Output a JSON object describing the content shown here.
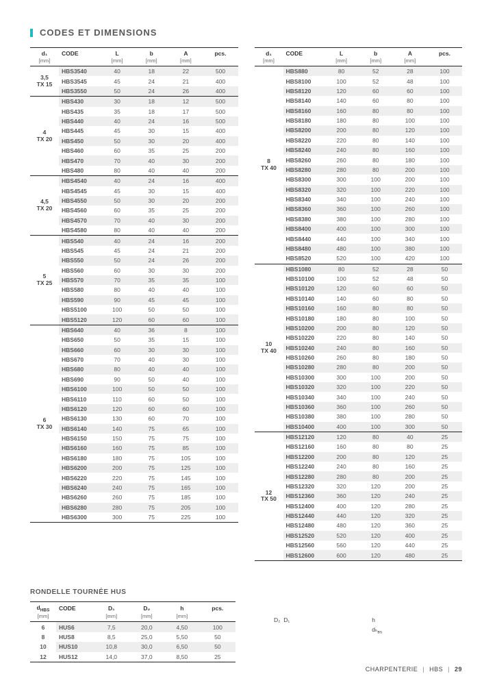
{
  "title": "CODES ET DIMENSIONS",
  "main_header": {
    "d": "d₁",
    "d_unit": "[mm]",
    "code": "CODE",
    "L": "L",
    "L_unit": "[mm]",
    "b": "b",
    "b_unit": "[mm]",
    "A": "A",
    "A_unit": "[mm]",
    "pcs": "pcs."
  },
  "groups_left": [
    {
      "d": "3,5\nTX 15",
      "rows": [
        [
          "HBS3540",
          "40",
          "18",
          "22",
          "500"
        ],
        [
          "HBS3545",
          "45",
          "24",
          "21",
          "400"
        ],
        [
          "HBS3550",
          "50",
          "24",
          "26",
          "400"
        ]
      ]
    },
    {
      "d": "4\nTX 20",
      "rows": [
        [
          "HBS430",
          "30",
          "18",
          "12",
          "500"
        ],
        [
          "HBS435",
          "35",
          "18",
          "17",
          "500"
        ],
        [
          "HBS440",
          "40",
          "24",
          "16",
          "500"
        ],
        [
          "HBS445",
          "45",
          "30",
          "15",
          "400"
        ],
        [
          "HBS450",
          "50",
          "30",
          "20",
          "400"
        ],
        [
          "HBS460",
          "60",
          "35",
          "25",
          "200"
        ],
        [
          "HBS470",
          "70",
          "40",
          "30",
          "200"
        ],
        [
          "HBS480",
          "80",
          "40",
          "40",
          "200"
        ]
      ]
    },
    {
      "d": "4,5\nTX 20",
      "rows": [
        [
          "HBS4540",
          "40",
          "24",
          "16",
          "400"
        ],
        [
          "HBS4545",
          "45",
          "30",
          "15",
          "400"
        ],
        [
          "HBS4550",
          "50",
          "30",
          "20",
          "200"
        ],
        [
          "HBS4560",
          "60",
          "35",
          "25",
          "200"
        ],
        [
          "HBS4570",
          "70",
          "40",
          "30",
          "200"
        ],
        [
          "HBS4580",
          "80",
          "40",
          "40",
          "200"
        ]
      ]
    },
    {
      "d": "5\nTX 25",
      "rows": [
        [
          "HBS540",
          "40",
          "24",
          "16",
          "200"
        ],
        [
          "HBS545",
          "45",
          "24",
          "21",
          "200"
        ],
        [
          "HBS550",
          "50",
          "24",
          "26",
          "200"
        ],
        [
          "HBS560",
          "60",
          "30",
          "30",
          "200"
        ],
        [
          "HBS570",
          "70",
          "35",
          "35",
          "100"
        ],
        [
          "HBS580",
          "80",
          "40",
          "40",
          "100"
        ],
        [
          "HBS590",
          "90",
          "45",
          "45",
          "100"
        ],
        [
          "HBS5100",
          "100",
          "50",
          "50",
          "100"
        ],
        [
          "HBS5120",
          "120",
          "60",
          "60",
          "100"
        ]
      ]
    },
    {
      "d": "6\nTX 30",
      "rows": [
        [
          "HBS640",
          "40",
          "36",
          "8",
          "100"
        ],
        [
          "HBS650",
          "50",
          "35",
          "15",
          "100"
        ],
        [
          "HBS660",
          "60",
          "30",
          "30",
          "100"
        ],
        [
          "HBS670",
          "70",
          "40",
          "30",
          "100"
        ],
        [
          "HBS680",
          "80",
          "40",
          "40",
          "100"
        ],
        [
          "HBS690",
          "90",
          "50",
          "40",
          "100"
        ],
        [
          "HBS6100",
          "100",
          "50",
          "50",
          "100"
        ],
        [
          "HBS6110",
          "110",
          "60",
          "50",
          "100"
        ],
        [
          "HBS6120",
          "120",
          "60",
          "60",
          "100"
        ],
        [
          "HBS6130",
          "130",
          "60",
          "70",
          "100"
        ],
        [
          "HBS6140",
          "140",
          "75",
          "65",
          "100"
        ],
        [
          "HBS6150",
          "150",
          "75",
          "75",
          "100"
        ],
        [
          "HBS6160",
          "160",
          "75",
          "85",
          "100"
        ],
        [
          "HBS6180",
          "180",
          "75",
          "105",
          "100"
        ],
        [
          "HBS6200",
          "200",
          "75",
          "125",
          "100"
        ],
        [
          "HBS6220",
          "220",
          "75",
          "145",
          "100"
        ],
        [
          "HBS6240",
          "240",
          "75",
          "165",
          "100"
        ],
        [
          "HBS6260",
          "260",
          "75",
          "185",
          "100"
        ],
        [
          "HBS6280",
          "280",
          "75",
          "205",
          "100"
        ],
        [
          "HBS6300",
          "300",
          "75",
          "225",
          "100"
        ]
      ]
    }
  ],
  "groups_right": [
    {
      "d": "8\nTX 40",
      "rows": [
        [
          "HBS880",
          "80",
          "52",
          "28",
          "100"
        ],
        [
          "HBS8100",
          "100",
          "52",
          "48",
          "100"
        ],
        [
          "HBS8120",
          "120",
          "60",
          "60",
          "100"
        ],
        [
          "HBS8140",
          "140",
          "60",
          "80",
          "100"
        ],
        [
          "HBS8160",
          "160",
          "80",
          "80",
          "100"
        ],
        [
          "HBS8180",
          "180",
          "80",
          "100",
          "100"
        ],
        [
          "HBS8200",
          "200",
          "80",
          "120",
          "100"
        ],
        [
          "HBS8220",
          "220",
          "80",
          "140",
          "100"
        ],
        [
          "HBS8240",
          "240",
          "80",
          "160",
          "100"
        ],
        [
          "HBS8260",
          "260",
          "80",
          "180",
          "100"
        ],
        [
          "HBS8280",
          "280",
          "80",
          "200",
          "100"
        ],
        [
          "HBS8300",
          "300",
          "100",
          "200",
          "100"
        ],
        [
          "HBS8320",
          "320",
          "100",
          "220",
          "100"
        ],
        [
          "HBS8340",
          "340",
          "100",
          "240",
          "100"
        ],
        [
          "HBS8360",
          "360",
          "100",
          "260",
          "100"
        ],
        [
          "HBS8380",
          "380",
          "100",
          "280",
          "100"
        ],
        [
          "HBS8400",
          "400",
          "100",
          "300",
          "100"
        ],
        [
          "HBS8440",
          "440",
          "100",
          "340",
          "100"
        ],
        [
          "HBS8480",
          "480",
          "100",
          "380",
          "100"
        ],
        [
          "HBS8520",
          "520",
          "100",
          "420",
          "100"
        ]
      ]
    },
    {
      "d": "10\nTX 40",
      "rows": [
        [
          "HBS1080",
          "80",
          "52",
          "28",
          "50"
        ],
        [
          "HBS10100",
          "100",
          "52",
          "48",
          "50"
        ],
        [
          "HBS10120",
          "120",
          "60",
          "60",
          "50"
        ],
        [
          "HBS10140",
          "140",
          "60",
          "80",
          "50"
        ],
        [
          "HBS10160",
          "160",
          "80",
          "80",
          "50"
        ],
        [
          "HBS10180",
          "180",
          "80",
          "100",
          "50"
        ],
        [
          "HBS10200",
          "200",
          "80",
          "120",
          "50"
        ],
        [
          "HBS10220",
          "220",
          "80",
          "140",
          "50"
        ],
        [
          "HBS10240",
          "240",
          "80",
          "160",
          "50"
        ],
        [
          "HBS10260",
          "260",
          "80",
          "180",
          "50"
        ],
        [
          "HBS10280",
          "280",
          "80",
          "200",
          "50"
        ],
        [
          "HBS10300",
          "300",
          "100",
          "200",
          "50"
        ],
        [
          "HBS10320",
          "320",
          "100",
          "220",
          "50"
        ],
        [
          "HBS10340",
          "340",
          "100",
          "240",
          "50"
        ],
        [
          "HBS10360",
          "360",
          "100",
          "260",
          "50"
        ],
        [
          "HBS10380",
          "380",
          "100",
          "280",
          "50"
        ],
        [
          "HBS10400",
          "400",
          "100",
          "300",
          "50"
        ]
      ]
    },
    {
      "d": "12\nTX 50",
      "rows": [
        [
          "HBS12120",
          "120",
          "80",
          "40",
          "25"
        ],
        [
          "HBS12160",
          "160",
          "80",
          "80",
          "25"
        ],
        [
          "HBS12200",
          "200",
          "80",
          "120",
          "25"
        ],
        [
          "HBS12240",
          "240",
          "80",
          "160",
          "25"
        ],
        [
          "HBS12280",
          "280",
          "80",
          "200",
          "25"
        ],
        [
          "HBS12320",
          "320",
          "120",
          "200",
          "25"
        ],
        [
          "HBS12360",
          "360",
          "120",
          "240",
          "25"
        ],
        [
          "HBS12400",
          "400",
          "120",
          "280",
          "25"
        ],
        [
          "HBS12440",
          "440",
          "120",
          "320",
          "25"
        ],
        [
          "HBS12480",
          "480",
          "120",
          "360",
          "25"
        ],
        [
          "HBS12520",
          "520",
          "120",
          "400",
          "25"
        ],
        [
          "HBS12560",
          "560",
          "120",
          "440",
          "25"
        ],
        [
          "HBS12600",
          "600",
          "120",
          "480",
          "25"
        ]
      ]
    }
  ],
  "hus_title": "RONDELLE TOURNÉE HUS",
  "hus_header": {
    "d": "d",
    "d_sub": "HBS",
    "d_unit": "[mm]",
    "code": "CODE",
    "D1": "D₁",
    "D1_unit": "[mm]",
    "D2": "D₂",
    "D2_unit": "[mm]",
    "h": "h",
    "h_unit": "[mm]",
    "pcs": "pcs."
  },
  "hus_rows": [
    [
      "6",
      "HUS6",
      "7,5",
      "20,0",
      "4,50",
      "100"
    ],
    [
      "8",
      "HUS8",
      "8,5",
      "25,0",
      "5,50",
      "50"
    ],
    [
      "10",
      "HUS10",
      "10,8",
      "30,0",
      "6,50",
      "50"
    ],
    [
      "12",
      "HUS12",
      "14,0",
      "37,0",
      "8,50",
      "25"
    ]
  ],
  "diagram": {
    "D2": "D₂",
    "D1": "D₁",
    "h": "h",
    "dhbs": "dₕ"
  },
  "footer": {
    "section": "CHARPENTERIE",
    "code": "HBS",
    "page": "29"
  }
}
